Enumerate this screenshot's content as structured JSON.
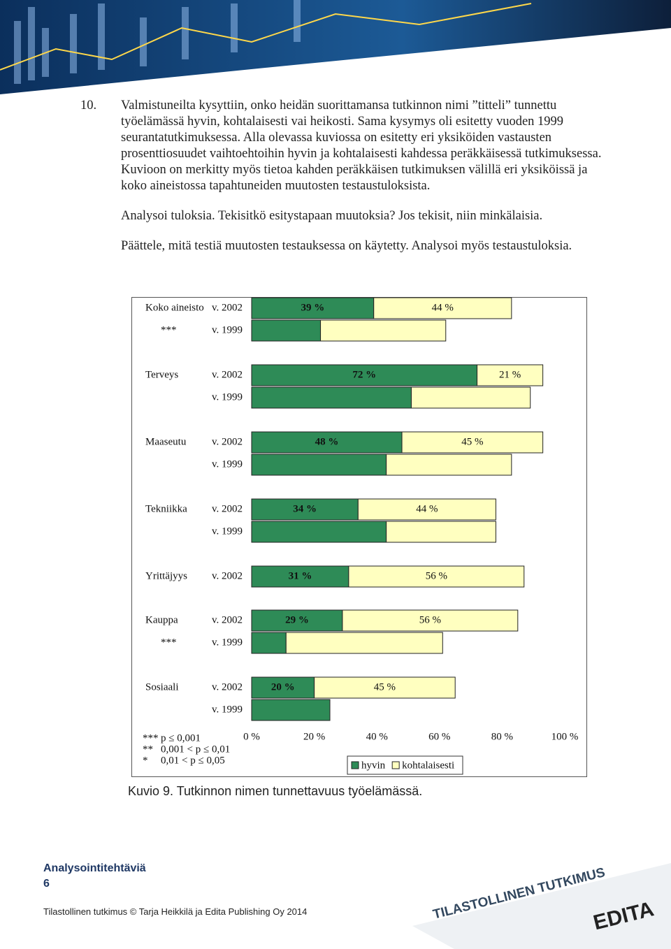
{
  "question": {
    "number": "10.",
    "paragraphs": [
      "Valmistuneilta kysyttiin, onko heidän suorittamansa tutkinnon nimi ”titteli” tunnettu työelämässä hyvin, kohtalaisesti vai heikosti. Sama kysymys oli esitetty vuoden 1999 seurantatutkimuksessa. Alla olevassa kuviossa on esitetty eri yksiköiden vastausten prosenttiosuudet vaihtoehtoihin hyvin ja kohtalaisesti kahdessa peräkkäisessä tutkimuksessa. Kuvioon on merkitty myös tietoa kahden peräkkäisen tutkimuksen välillä eri yksiköissä ja koko aineistossa tapahtuneiden muutosten testaustuloksista.",
      "Analysoi tuloksia. Tekisitkö esitystapaan muutoksia? Jos tekisit, niin minkälaisia.",
      "Päättele, mitä testiä muutosten testauksessa on käytetty. Analysoi myös testaustuloksia."
    ]
  },
  "chart_data": {
    "type": "stacked-barh",
    "categories": [
      "v. 2002",
      "v. 1999",
      "v. 2002",
      "v. 1999",
      "v. 2002",
      "v. 1999",
      "v. 2002",
      "v. 1999",
      "v. 2002",
      "v. 2002",
      "v. 1999",
      "v. 2002",
      "v. 1999"
    ],
    "group_labels": [
      "Koko aineisto",
      null,
      "Terveys",
      null,
      "Maaseutu",
      null,
      "Tekniikka",
      null,
      "Yrittäjyys",
      "Kauppa",
      null,
      "Sosiaali",
      null
    ],
    "significance": [
      null,
      "***",
      null,
      null,
      null,
      null,
      null,
      null,
      null,
      null,
      "***",
      null,
      null
    ],
    "series": [
      {
        "name": "hyvin",
        "color": "#2e8b57",
        "values": [
          39,
          22,
          72,
          51,
          48,
          43,
          34,
          43,
          31,
          29,
          11,
          20,
          25
        ],
        "value_labels": [
          "39 %",
          null,
          "72 %",
          null,
          "48 %",
          null,
          "34 %",
          null,
          "31 %",
          "29 %",
          null,
          "20 %",
          null
        ]
      },
      {
        "name": "kohtalaisesti",
        "color": "#ffffc0",
        "values": [
          44,
          40,
          21,
          38,
          45,
          40,
          44,
          35,
          56,
          56,
          50,
          45,
          null
        ],
        "value_labels": [
          "44 %",
          null,
          "21 %",
          null,
          "45 %",
          null,
          "44 %",
          null,
          "56 %",
          "56 %",
          null,
          "45 %",
          null
        ]
      }
    ],
    "xlim": [
      0,
      100
    ],
    "xticks": [
      {
        "value": 0,
        "label": "0 %"
      },
      {
        "value": 20,
        "label": "20 %"
      },
      {
        "value": 40,
        "label": "40 %"
      },
      {
        "value": 60,
        "label": "60 %"
      },
      {
        "value": 80,
        "label": "80 %"
      },
      {
        "value": 100,
        "label": "100 %"
      }
    ],
    "notes": [
      {
        "stars": "***",
        "text": "p ≤ 0,001"
      },
      {
        "stars": "**",
        "text": "0,001 < p ≤ 0,01"
      },
      {
        "stars": "*",
        "text": "0,01 < p ≤ 0,05"
      }
    ]
  },
  "caption": "Kuvio 9. Tutkinnon nimen tunnettavuus työelämässä.",
  "footer": {
    "section": "Analysointitehtäviä",
    "page": "6",
    "copyright": "Tilastollinen tutkimus © Tarja Heikkilä ja Edita Publishing Oy 2014",
    "logo_title": "TILASTOLLINEN TUTKIMUS",
    "logo_brand": "EDITA"
  }
}
